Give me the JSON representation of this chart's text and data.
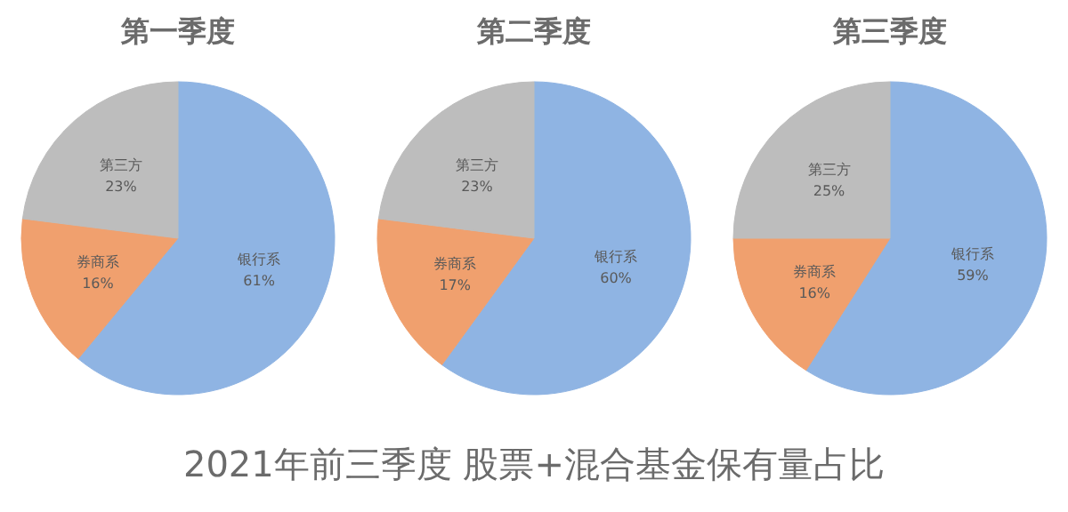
{
  "chart_data": [
    {
      "type": "pie",
      "title": "第一季度",
      "categories": [
        "银行系",
        "券商系",
        "第三方"
      ],
      "values": [
        61,
        16,
        23
      ],
      "value_labels": [
        "61%",
        "16%",
        "23%"
      ],
      "colors": [
        "#8fb4e3",
        "#f0a06e",
        "#bdbdbd"
      ]
    },
    {
      "type": "pie",
      "title": "第二季度",
      "categories": [
        "银行系",
        "券商系",
        "第三方"
      ],
      "values": [
        60,
        17,
        23
      ],
      "value_labels": [
        "60%",
        "17%",
        "23%"
      ],
      "colors": [
        "#8fb4e3",
        "#f0a06e",
        "#bdbdbd"
      ]
    },
    {
      "type": "pie",
      "title": "第三季度",
      "categories": [
        "银行系",
        "券商系",
        "第三方"
      ],
      "values": [
        59,
        16,
        25
      ],
      "value_labels": [
        "59%",
        "16%",
        "25%"
      ],
      "colors": [
        "#8fb4e3",
        "#f0a06e",
        "#bdbdbd"
      ]
    },
    {
      "type": "other",
      "title": "2021年前三季度 股票+混合基金保有量占比"
    }
  ]
}
